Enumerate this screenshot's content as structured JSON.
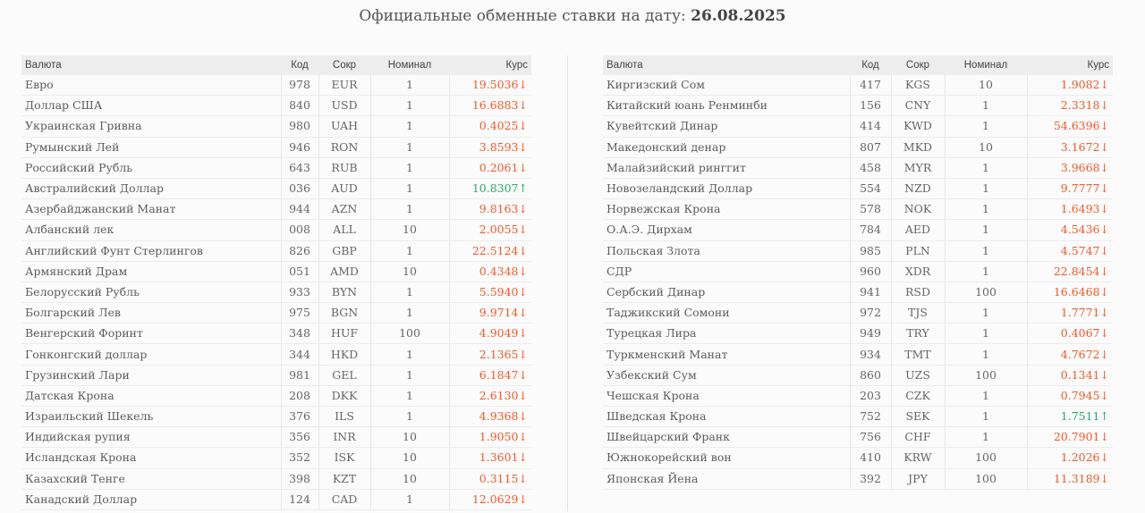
{
  "page": {
    "title_prefix": "Официальные обменные ставки на дату:",
    "date": "26.08.2025"
  },
  "columns": {
    "name": "Валюта",
    "code": "Код",
    "abbr": "Сокр",
    "nominal": "Номинал",
    "rate": "Курс"
  },
  "colors": {
    "down": "#f05a28",
    "up": "#2aa86b"
  },
  "left_rows": [
    {
      "name": "Евро",
      "code": "978",
      "abbr": "EUR",
      "nominal": "1",
      "rate": "19.5036",
      "dir": "down"
    },
    {
      "name": "Доллар США",
      "code": "840",
      "abbr": "USD",
      "nominal": "1",
      "rate": "16.6883",
      "dir": "down"
    },
    {
      "name": "Украинская Гривна",
      "code": "980",
      "abbr": "UAH",
      "nominal": "1",
      "rate": "0.4025",
      "dir": "down"
    },
    {
      "name": "Румынский Лей",
      "code": "946",
      "abbr": "RON",
      "nominal": "1",
      "rate": "3.8593",
      "dir": "down"
    },
    {
      "name": "Российский Рубль",
      "code": "643",
      "abbr": "RUB",
      "nominal": "1",
      "rate": "0.2061",
      "dir": "down"
    },
    {
      "name": "Австралийский Доллар",
      "code": "036",
      "abbr": "AUD",
      "nominal": "1",
      "rate": "10.8307",
      "dir": "up"
    },
    {
      "name": "Азербайджанский Манат",
      "code": "944",
      "abbr": "AZN",
      "nominal": "1",
      "rate": "9.8163",
      "dir": "down"
    },
    {
      "name": "Албанский лек",
      "code": "008",
      "abbr": "ALL",
      "nominal": "10",
      "rate": "2.0055",
      "dir": "down"
    },
    {
      "name": "Английский Фунт Стерлингов",
      "code": "826",
      "abbr": "GBP",
      "nominal": "1",
      "rate": "22.5124",
      "dir": "down"
    },
    {
      "name": "Армянский Драм",
      "code": "051",
      "abbr": "AMD",
      "nominal": "10",
      "rate": "0.4348",
      "dir": "down"
    },
    {
      "name": "Белорусский Рубль",
      "code": "933",
      "abbr": "BYN",
      "nominal": "1",
      "rate": "5.5940",
      "dir": "down"
    },
    {
      "name": "Болгарский Лев",
      "code": "975",
      "abbr": "BGN",
      "nominal": "1",
      "rate": "9.9714",
      "dir": "down"
    },
    {
      "name": "Венгерский Форинт",
      "code": "348",
      "abbr": "HUF",
      "nominal": "100",
      "rate": "4.9049",
      "dir": "down"
    },
    {
      "name": "Гонконгский доллар",
      "code": "344",
      "abbr": "HKD",
      "nominal": "1",
      "rate": "2.1365",
      "dir": "down"
    },
    {
      "name": "Грузинский Лари",
      "code": "981",
      "abbr": "GEL",
      "nominal": "1",
      "rate": "6.1847",
      "dir": "down"
    },
    {
      "name": "Датская Крона",
      "code": "208",
      "abbr": "DKK",
      "nominal": "1",
      "rate": "2.6130",
      "dir": "down"
    },
    {
      "name": "Израильский Шекель",
      "code": "376",
      "abbr": "ILS",
      "nominal": "1",
      "rate": "4.9368",
      "dir": "down"
    },
    {
      "name": "Индийская рупия",
      "code": "356",
      "abbr": "INR",
      "nominal": "10",
      "rate": "1.9050",
      "dir": "down"
    },
    {
      "name": "Исландская Крона",
      "code": "352",
      "abbr": "ISK",
      "nominal": "10",
      "rate": "1.3601",
      "dir": "down"
    },
    {
      "name": "Казахский Тенге",
      "code": "398",
      "abbr": "KZT",
      "nominal": "10",
      "rate": "0.3115",
      "dir": "down"
    },
    {
      "name": "Канадский Доллар",
      "code": "124",
      "abbr": "CAD",
      "nominal": "1",
      "rate": "12.0629",
      "dir": "down"
    }
  ],
  "right_rows": [
    {
      "name": "Киргизский Сом",
      "code": "417",
      "abbr": "KGS",
      "nominal": "10",
      "rate": "1.9082",
      "dir": "down"
    },
    {
      "name": "Китайский юань Ренминби",
      "code": "156",
      "abbr": "CNY",
      "nominal": "1",
      "rate": "2.3318",
      "dir": "down"
    },
    {
      "name": "Кувейтский Динар",
      "code": "414",
      "abbr": "KWD",
      "nominal": "1",
      "rate": "54.6396",
      "dir": "down"
    },
    {
      "name": "Македонский денар",
      "code": "807",
      "abbr": "MKD",
      "nominal": "10",
      "rate": "3.1672",
      "dir": "down"
    },
    {
      "name": "Малайзийский ринггит",
      "code": "458",
      "abbr": "MYR",
      "nominal": "1",
      "rate": "3.9668",
      "dir": "down"
    },
    {
      "name": "Новозеландский Доллар",
      "code": "554",
      "abbr": "NZD",
      "nominal": "1",
      "rate": "9.7777",
      "dir": "down"
    },
    {
      "name": "Норвежская Крона",
      "code": "578",
      "abbr": "NOK",
      "nominal": "1",
      "rate": "1.6493",
      "dir": "down"
    },
    {
      "name": "О.А.Э. Дирхам",
      "code": "784",
      "abbr": "AED",
      "nominal": "1",
      "rate": "4.5436",
      "dir": "down"
    },
    {
      "name": "Польская Злота",
      "code": "985",
      "abbr": "PLN",
      "nominal": "1",
      "rate": "4.5747",
      "dir": "down"
    },
    {
      "name": "СДР",
      "code": "960",
      "abbr": "XDR",
      "nominal": "1",
      "rate": "22.8454",
      "dir": "down"
    },
    {
      "name": "Сербский Динар",
      "code": "941",
      "abbr": "RSD",
      "nominal": "100",
      "rate": "16.6468",
      "dir": "down"
    },
    {
      "name": "Таджикский Сомони",
      "code": "972",
      "abbr": "TJS",
      "nominal": "1",
      "rate": "1.7771",
      "dir": "down"
    },
    {
      "name": "Турецкая Лира",
      "code": "949",
      "abbr": "TRY",
      "nominal": "1",
      "rate": "0.4067",
      "dir": "down"
    },
    {
      "name": "Туркменский Манат",
      "code": "934",
      "abbr": "TMT",
      "nominal": "1",
      "rate": "4.7672",
      "dir": "down"
    },
    {
      "name": "Узбекский Сум",
      "code": "860",
      "abbr": "UZS",
      "nominal": "100",
      "rate": "0.1341",
      "dir": "down"
    },
    {
      "name": "Чешская Крона",
      "code": "203",
      "abbr": "CZK",
      "nominal": "1",
      "rate": "0.7945",
      "dir": "down"
    },
    {
      "name": "Шведская Крона",
      "code": "752",
      "abbr": "SEK",
      "nominal": "1",
      "rate": "1.7511",
      "dir": "up"
    },
    {
      "name": "Швейцарский Франк",
      "code": "756",
      "abbr": "CHF",
      "nominal": "1",
      "rate": "20.7901",
      "dir": "down"
    },
    {
      "name": "Южнокорейский вон",
      "code": "410",
      "abbr": "KRW",
      "nominal": "100",
      "rate": "1.2026",
      "dir": "down"
    },
    {
      "name": "Японская Йена",
      "code": "392",
      "abbr": "JPY",
      "nominal": "100",
      "rate": "11.3189",
      "dir": "down"
    }
  ]
}
